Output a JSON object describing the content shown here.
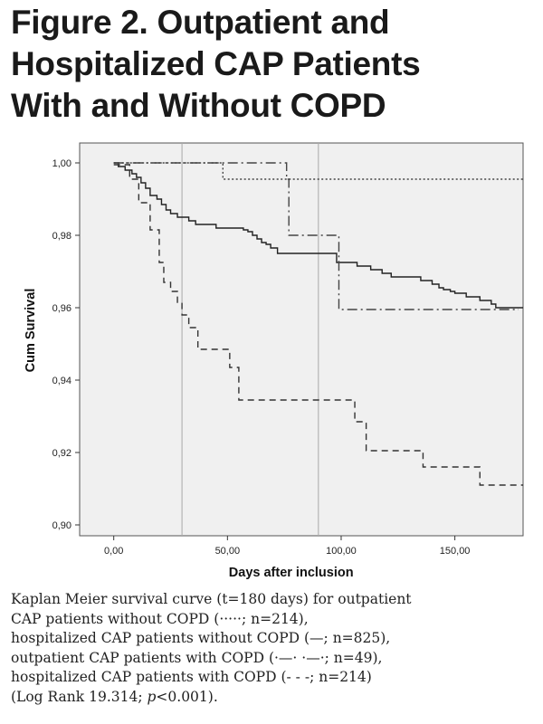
{
  "figure": {
    "title_lines": [
      "Figure 2. Outpatient and",
      "Hospitalized CAP Patients",
      "With and Without COPD"
    ],
    "caption_lines": [
      "Kaplan Meier survival curve (t=180 days) for outpatient",
      "CAP patients without COPD (·····; n=214),",
      "hospitalized CAP patients without COPD (—; n=825),",
      "outpatient CAP patients with COPD (·—· ·—·; n=49),",
      "hospitalized CAP patients with COPD (- - -; n=214)"
    ],
    "caption_last": {
      "prefix": "(Log Rank 19.314; ",
      "p": "p",
      "suffix": "<0.001)."
    }
  },
  "chart_data": {
    "type": "line",
    "title": "",
    "xlabel": "Days after inclusion",
    "ylabel": "Cum Survival",
    "xlim": [
      -15,
      180
    ],
    "ylim": [
      0.897,
      1.0055
    ],
    "x_ticks": [
      0,
      50,
      100,
      150
    ],
    "x_tick_labels": [
      "0,00",
      "50,00",
      "100,00",
      "150,00"
    ],
    "y_ticks": [
      0.9,
      0.92,
      0.94,
      0.96,
      0.98,
      1.0
    ],
    "y_tick_labels": [
      "0,90",
      "0,92",
      "0,94",
      "0,96",
      "0,98",
      "1,00"
    ],
    "reference_lines_x": [
      30,
      90
    ],
    "grid": false,
    "background": "#f0f0f0",
    "series": [
      {
        "style": "dotted",
        "color": "#444444",
        "steps": [
          [
            0,
            1.0
          ],
          [
            48,
            0.9955
          ],
          [
            180,
            0.9955
          ]
        ]
      },
      {
        "style": "solid",
        "color": "#222222",
        "steps": [
          [
            0,
            1.0
          ],
          [
            2,
            0.999
          ],
          [
            5,
            0.998
          ],
          [
            8,
            0.997
          ],
          [
            10,
            0.996
          ],
          [
            12,
            0.9945
          ],
          [
            14,
            0.993
          ],
          [
            16,
            0.991
          ],
          [
            19,
            0.99
          ],
          [
            21,
            0.9885
          ],
          [
            23,
            0.987
          ],
          [
            25,
            0.986
          ],
          [
            28,
            0.985
          ],
          [
            33,
            0.984
          ],
          [
            36,
            0.983
          ],
          [
            45,
            0.982
          ],
          [
            57,
            0.9815
          ],
          [
            59,
            0.981
          ],
          [
            61,
            0.98
          ],
          [
            63,
            0.979
          ],
          [
            65,
            0.978
          ],
          [
            67,
            0.9775
          ],
          [
            69,
            0.9765
          ],
          [
            72,
            0.975
          ],
          [
            98,
            0.9725
          ],
          [
            107,
            0.9715
          ],
          [
            113,
            0.9705
          ],
          [
            118,
            0.9695
          ],
          [
            122,
            0.9685
          ],
          [
            135,
            0.9675
          ],
          [
            140,
            0.9665
          ],
          [
            143,
            0.9655
          ],
          [
            145,
            0.965
          ],
          [
            148,
            0.9645
          ],
          [
            150,
            0.964
          ],
          [
            155,
            0.963
          ],
          [
            161,
            0.962
          ],
          [
            166,
            0.961
          ],
          [
            168,
            0.96
          ],
          [
            180,
            0.96
          ]
        ]
      },
      {
        "style": "dash-dot",
        "color": "#444444",
        "steps": [
          [
            0,
            1.0
          ],
          [
            76,
            0.9955
          ],
          [
            77,
            0.98
          ],
          [
            99,
            0.9595
          ],
          [
            178,
            0.9595
          ]
        ]
      },
      {
        "style": "dashed",
        "color": "#333333",
        "steps": [
          [
            0,
            0.9995
          ],
          [
            7,
            0.9955
          ],
          [
            11,
            0.989
          ],
          [
            16,
            0.9815
          ],
          [
            20,
            0.9725
          ],
          [
            22,
            0.967
          ],
          [
            25,
            0.9645
          ],
          [
            28,
            0.9615
          ],
          [
            30,
            0.958
          ],
          [
            33,
            0.9545
          ],
          [
            37,
            0.9485
          ],
          [
            51,
            0.9435
          ],
          [
            55,
            0.9345
          ],
          [
            106,
            0.9285
          ],
          [
            111,
            0.9205
          ],
          [
            136,
            0.916
          ],
          [
            161,
            0.911
          ],
          [
            180,
            0.911
          ]
        ]
      }
    ]
  }
}
